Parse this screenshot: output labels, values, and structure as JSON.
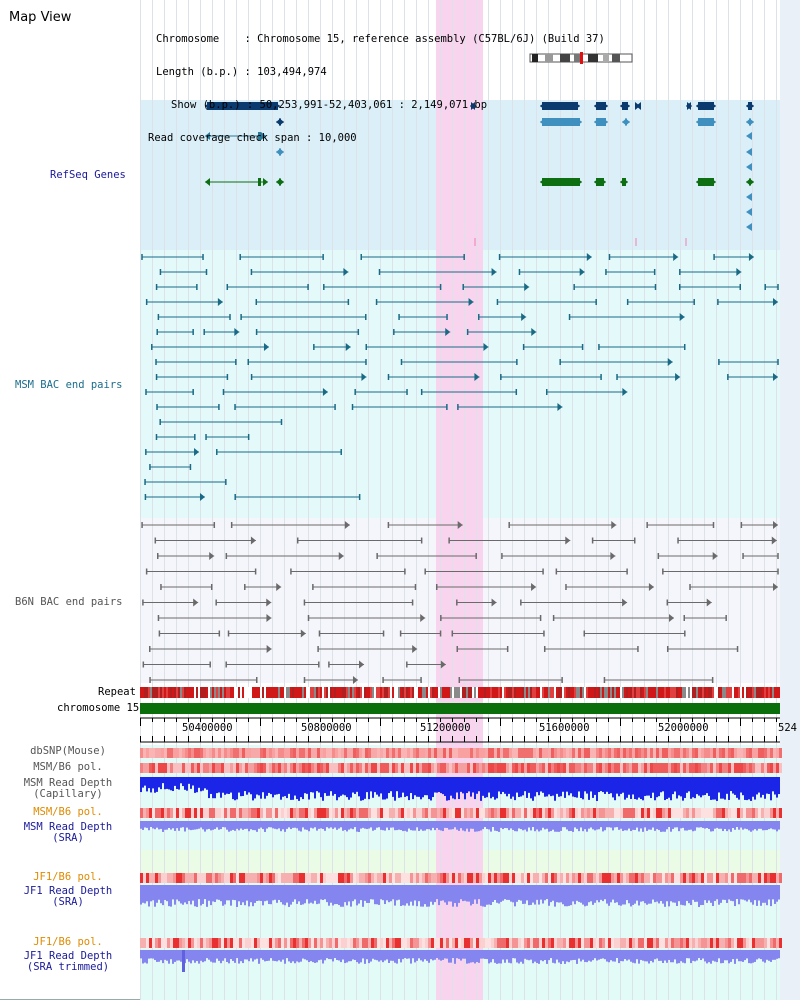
{
  "view": {
    "title": "Map View"
  },
  "info": {
    "chromosome": "Chromosome    : Chromosome 15, reference assembly (C57BL/6J) (Build 37)",
    "length": "Length (b.p.) : 103,494,974",
    "show": "Show (b.p.) : 50,253,991-52,403,061 : 2,149,071 bp",
    "coverage": "Read coverage check span : 10,000"
  },
  "tracks": {
    "refseq": "RefSeq Genes",
    "msm_bac": "MSM BAC end pairs",
    "b6n_bac": "B6N BAC end pairs",
    "repeat": "Repeat",
    "chromosome": "chromosome 15",
    "dbsnp": "dbSNP(Mouse)",
    "msm_b6_pol_1": "MSM/B6 pol.",
    "msm_depth_cap_1": "MSM Read Depth",
    "msm_depth_cap_2": "(Capillary)",
    "msm_b6_pol_2": "MSM/B6 pol.",
    "msm_depth_sra_1": "MSM Read Depth",
    "msm_depth_sra_2": "(SRA)",
    "jf1_pol_1": "JF1/B6 pol.",
    "jf1_depth_sra_1": "JF1 Read Depth",
    "jf1_depth_sra_2": "(SRA)",
    "jf1_pol_2": "JF1/B6 pol.",
    "jf1_depth_trim_1": "JF1 Read Depth",
    "jf1_depth_trim_2": "(SRA trimmed)"
  },
  "axis": {
    "ticks": [
      "50400000",
      "50800000",
      "51200000",
      "51600000",
      "52000000",
      "524"
    ]
  },
  "colors": {
    "refseq_bg": "#dbeff9",
    "msm_bg": "#e4fafa",
    "b6n_bg": "#f5f6fb",
    "highlight": "#f9d4ef",
    "gene_dark": "#0b3a6e",
    "gene_mid": "#3f8fbf",
    "gene_green": "#0d6e12",
    "msm_feature": "#1a6a86",
    "b6n_feature": "#6a6a6a",
    "chrom_bar": "#0a6e0a",
    "depth_capillary": "#1b25e8",
    "depth_sra": "#8585f0",
    "label_navy": "#1a1a99",
    "label_teal": "#1c6c8c",
    "label_orange": "#e08a00",
    "label_gray": "#555555"
  }
}
